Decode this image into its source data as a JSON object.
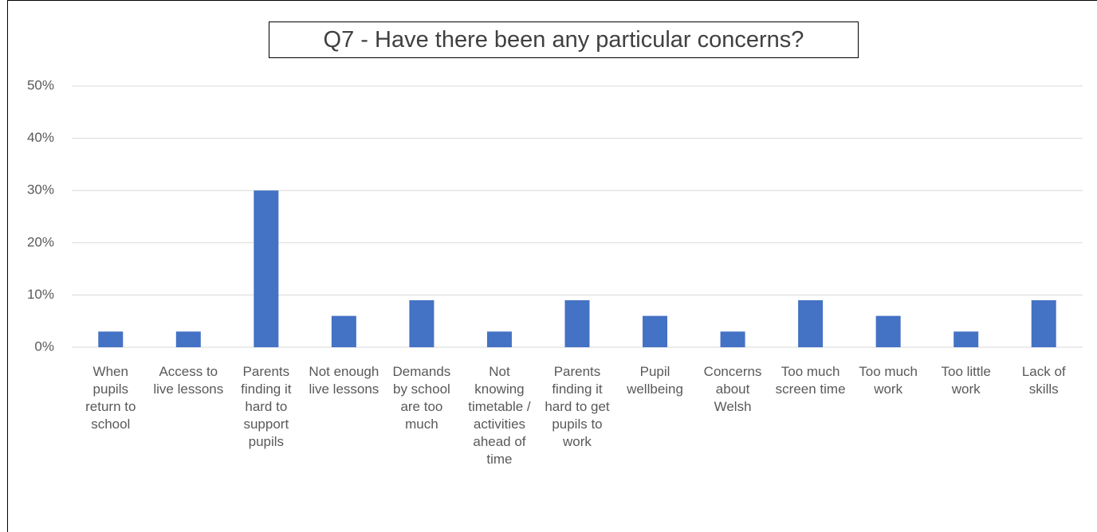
{
  "chart_data": {
    "type": "bar",
    "title": "Q7 - Have there been any particular concerns?",
    "categories": [
      "When pupils return to school",
      "Access to live lessons",
      "Parents finding it hard to support pupils",
      "Not enough live lessons",
      "Demands by school are too much",
      "Not knowing timetable / activities ahead of time",
      "Parents finding it hard to get pupils to work",
      "Pupil wellbeing",
      "Concerns about Welsh",
      "Too much screen time",
      "Too much work",
      "Too little work",
      "Lack of skills"
    ],
    "values": [
      3,
      3,
      30,
      6,
      9,
      3,
      9,
      6,
      3,
      9,
      6,
      3,
      9
    ],
    "color": "#4472c4",
    "ylim": [
      0,
      50
    ],
    "yticks": [
      {
        "value": 0,
        "label": "0%"
      },
      {
        "value": 10,
        "label": "10%"
      },
      {
        "value": 20,
        "label": "20%"
      },
      {
        "value": 30,
        "label": "30%"
      },
      {
        "value": 40,
        "label": "40%"
      },
      {
        "value": 50,
        "label": "50%"
      }
    ],
    "grid": true
  }
}
